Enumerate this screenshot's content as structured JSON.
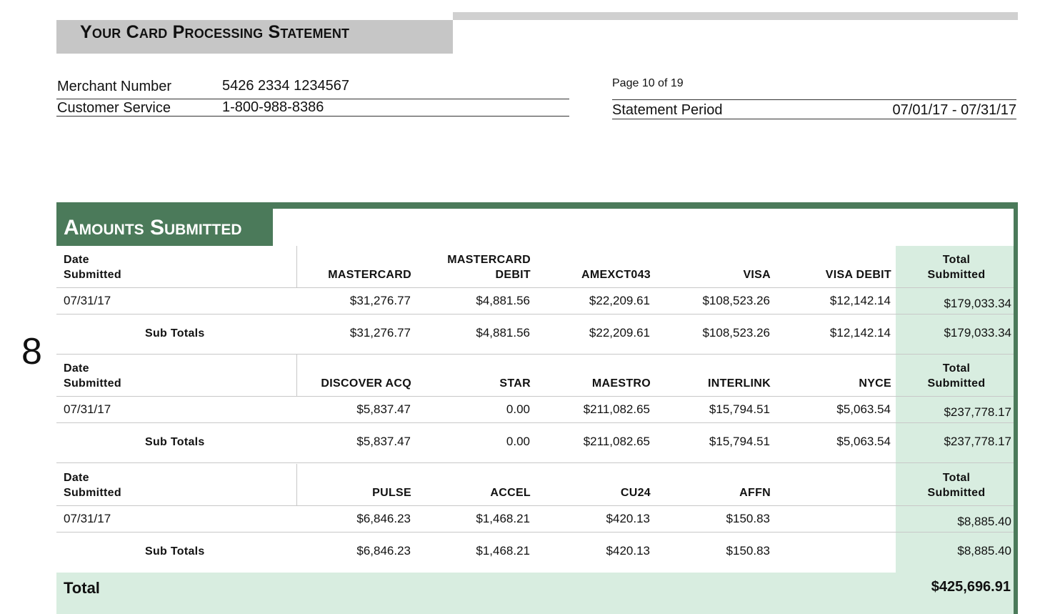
{
  "header": {
    "title": "Your Card Processing Statement",
    "merchant_label": "Merchant Number",
    "merchant_value": "5426 2334 1234567",
    "service_label": "Customer Service",
    "service_value": "1-800-988-8386",
    "page": "Page 10 of 19",
    "period_label": "Statement Period",
    "period_value": "07/01/17 - 07/31/17"
  },
  "margin_number": "8",
  "section": {
    "title": "Amounts Submitted",
    "date_header": [
      "Date",
      "Submitted"
    ],
    "total_header": [
      "Total",
      "Submitted"
    ],
    "subtotal_label": "Sub Totals",
    "blocks": [
      {
        "columns": [
          [
            "MASTERCARD"
          ],
          [
            "MASTERCARD",
            "DEBIT"
          ],
          [
            "AMEXCT043"
          ],
          [
            "VISA"
          ],
          [
            "VISA DEBIT"
          ]
        ],
        "row": {
          "date": "07/31/17",
          "values": [
            "$31,276.77",
            "$4,881.56",
            "$22,209.61",
            "$108,523.26",
            "$12,142.14"
          ],
          "total": "$179,033.34"
        },
        "subtotal": {
          "values": [
            "$31,276.77",
            "$4,881.56",
            "$22,209.61",
            "$108,523.26",
            "$12,142.14"
          ],
          "total": "$179,033.34"
        }
      },
      {
        "columns": [
          [
            "DISCOVER ACQ"
          ],
          [
            "STAR"
          ],
          [
            "MAESTRO"
          ],
          [
            "INTERLINK"
          ],
          [
            "NYCE"
          ]
        ],
        "row": {
          "date": "07/31/17",
          "values": [
            "$5,837.47",
            "0.00",
            "$211,082.65",
            "$15,794.51",
            "$5,063.54"
          ],
          "total": "$237,778.17"
        },
        "subtotal": {
          "values": [
            "$5,837.47",
            "0.00",
            "$211,082.65",
            "$15,794.51",
            "$5,063.54"
          ],
          "total": "$237,778.17"
        }
      },
      {
        "columns": [
          [
            "PULSE"
          ],
          [
            "ACCEL"
          ],
          [
            "CU24"
          ],
          [
            "AFFN"
          ],
          [
            ""
          ]
        ],
        "row": {
          "date": "07/31/17",
          "values": [
            "$6,846.23",
            "$1,468.21",
            "$420.13",
            "$150.83",
            ""
          ],
          "total": "$8,885.40"
        },
        "subtotal": {
          "values": [
            "$6,846.23",
            "$1,468.21",
            "$420.13",
            "$150.83",
            ""
          ],
          "total": "$8,885.40"
        }
      }
    ],
    "grand_total_label": "Total",
    "grand_total_value": "$425,696.91"
  }
}
